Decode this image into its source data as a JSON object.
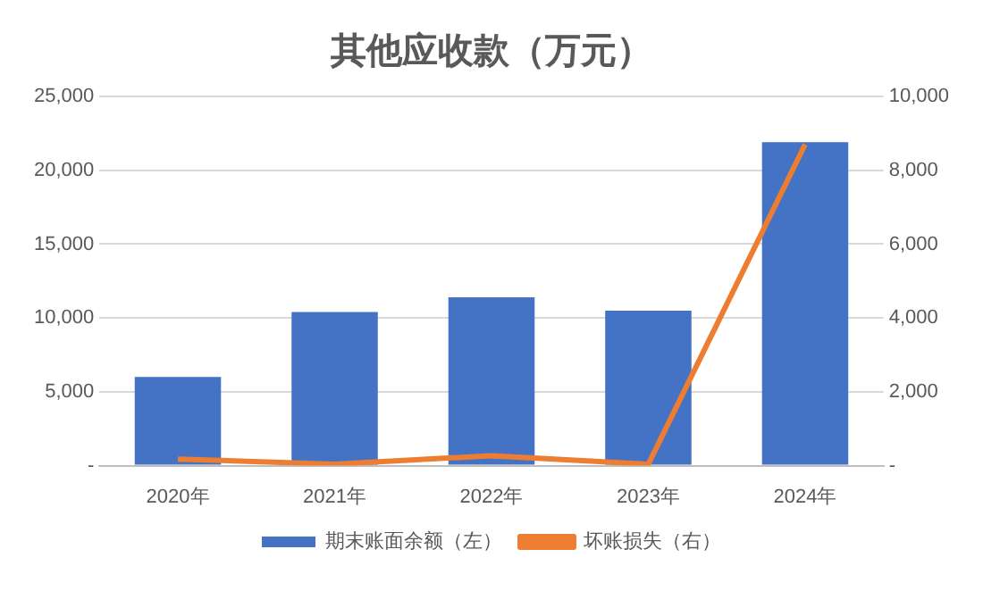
{
  "chart_data": {
    "type": "bar",
    "title": "其他应收款（万元）",
    "categories": [
      "2020年",
      "2021年",
      "2022年",
      "2023年",
      "2024年"
    ],
    "series": [
      {
        "name": "期末账面余额（左）",
        "color": "#4472c4",
        "values": [
          6000,
          10400,
          11400,
          10500,
          21900
        ]
      },
      {
        "name": "坏账损失（右）",
        "type": "line",
        "axis": "y2",
        "color": "#ed7d31",
        "values": [
          180,
          40,
          270,
          40,
          8700
        ]
      }
    ],
    "ylim": [
      0,
      25000
    ],
    "yticks": [
      {
        "value": 0,
        "label": "-"
      },
      {
        "value": 5000,
        "label": "5,000"
      },
      {
        "value": 10000,
        "label": "10,000"
      },
      {
        "value": 15000,
        "label": "15,000"
      },
      {
        "value": 20000,
        "label": "20,000"
      },
      {
        "value": 25000,
        "label": "25,000"
      }
    ],
    "y2lim": [
      0,
      10000
    ],
    "y2ticks": [
      {
        "value": 0,
        "label": "-"
      },
      {
        "value": 2000,
        "label": "2,000"
      },
      {
        "value": 4000,
        "label": "4,000"
      },
      {
        "value": 6000,
        "label": "6,000"
      },
      {
        "value": 8000,
        "label": "8,000"
      },
      {
        "value": 10000,
        "label": "10,000"
      }
    ],
    "grid": "y",
    "legend": "bottom",
    "marker": "none"
  }
}
